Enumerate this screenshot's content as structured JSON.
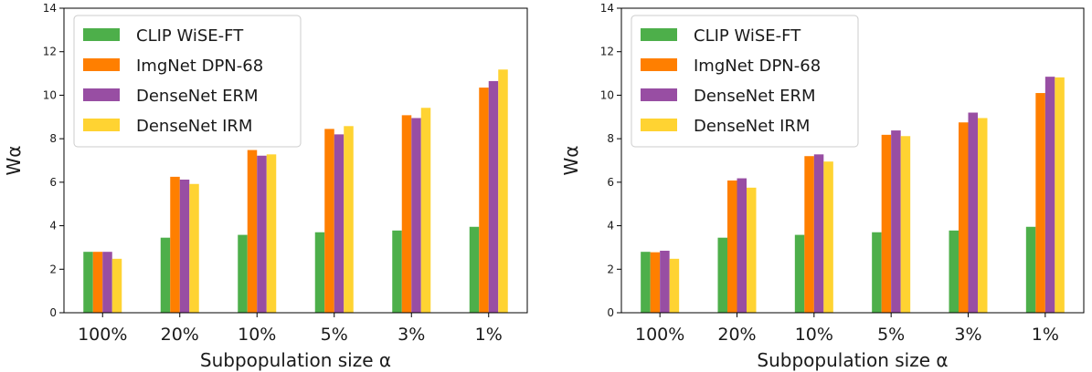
{
  "colors": {
    "CLIP WiSE-FT": "#4daf4a",
    "ImgNet DPN-68": "#ff7f00",
    "DenseNet ERM": "#984ea3",
    "DenseNet IRM": "#ffd332"
  },
  "chart_data": [
    {
      "type": "bar",
      "xlabel": "Subpopulation size α",
      "ylabel": "Wα",
      "ylim": [
        0,
        14
      ],
      "yticks": [
        "0",
        "2",
        "4",
        "6",
        "8",
        "10",
        "12",
        "14"
      ],
      "categories": [
        "100%",
        "20%",
        "10%",
        "5%",
        "3%",
        "1%"
      ],
      "legend_position": "upper-left",
      "grid": false,
      "series": [
        {
          "name": "CLIP WiSE-FT",
          "values": [
            2.8,
            3.45,
            3.58,
            3.7,
            3.78,
            3.95
          ]
        },
        {
          "name": "ImgNet DPN-68",
          "values": [
            2.8,
            6.25,
            7.48,
            8.45,
            9.08,
            10.35
          ]
        },
        {
          "name": "DenseNet ERM",
          "values": [
            2.8,
            6.12,
            7.22,
            8.2,
            8.95,
            10.65
          ]
        },
        {
          "name": "DenseNet IRM",
          "values": [
            2.48,
            5.92,
            7.28,
            8.58,
            9.42,
            11.18
          ]
        }
      ]
    },
    {
      "type": "bar",
      "xlabel": "Subpopulation size α",
      "ylabel": "Wα",
      "ylim": [
        0,
        14
      ],
      "yticks": [
        "0",
        "2",
        "4",
        "6",
        "8",
        "10",
        "12",
        "14"
      ],
      "categories": [
        "100%",
        "20%",
        "10%",
        "5%",
        "3%",
        "1%"
      ],
      "legend_position": "upper-left",
      "grid": false,
      "series": [
        {
          "name": "CLIP WiSE-FT",
          "values": [
            2.8,
            3.45,
            3.58,
            3.7,
            3.78,
            3.95
          ]
        },
        {
          "name": "ImgNet DPN-68",
          "values": [
            2.78,
            6.08,
            7.2,
            8.18,
            8.75,
            10.1
          ]
        },
        {
          "name": "DenseNet ERM",
          "values": [
            2.85,
            6.18,
            7.28,
            8.38,
            9.2,
            10.85
          ]
        },
        {
          "name": "DenseNet IRM",
          "values": [
            2.48,
            5.75,
            6.95,
            8.12,
            8.95,
            10.82
          ]
        }
      ]
    }
  ]
}
